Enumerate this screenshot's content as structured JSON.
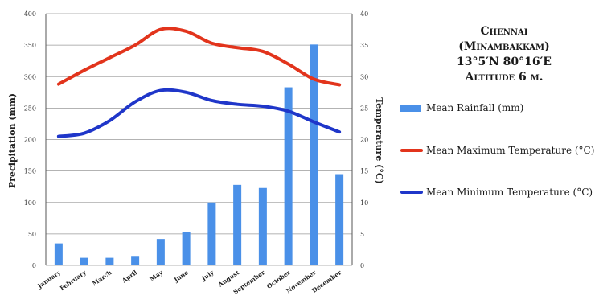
{
  "chart_data": {
    "type": "bar+line",
    "title": [
      "Chennai",
      "(Minambakkam)",
      "13°5′N 80°16′E",
      "Altitude 6 m."
    ],
    "categories": [
      "January",
      "February",
      "March",
      "April",
      "May",
      "June",
      "July",
      "August",
      "September",
      "October",
      "November",
      "December"
    ],
    "ylabel": "Precipitation (mm)",
    "y2label": "Temperature (°C)",
    "ylim": [
      0,
      400
    ],
    "y2lim": [
      0,
      40
    ],
    "yticks": [
      "0",
      "50",
      "100",
      "150",
      "200",
      "250",
      "300",
      "350",
      "400"
    ],
    "y2ticks": [
      "0",
      "5",
      "10",
      "15",
      "20",
      "25",
      "30",
      "35",
      "40"
    ],
    "grid": true,
    "legend_position": "right",
    "series": [
      {
        "name": "Mean Rainfall (mm)",
        "type": "bar",
        "axis": "left",
        "color": "#4a90e8",
        "values": [
          35,
          12,
          12,
          15,
          42,
          53,
          100,
          128,
          123,
          283,
          351,
          145
        ]
      },
      {
        "name": "Mean Maximum Temperature (°C)",
        "type": "line",
        "axis": "right",
        "color": "#e2341c",
        "values": [
          28.8,
          31.0,
          33.0,
          35.0,
          37.5,
          37.2,
          35.3,
          34.6,
          34.0,
          32.0,
          29.6,
          28.7
        ]
      },
      {
        "name": "Mean Minimum Temperature (°C)",
        "type": "line",
        "axis": "right",
        "color": "#1f36c9",
        "values": [
          20.5,
          21.0,
          23.0,
          26.0,
          27.8,
          27.5,
          26.2,
          25.6,
          25.3,
          24.5,
          22.8,
          21.2
        ]
      }
    ]
  }
}
